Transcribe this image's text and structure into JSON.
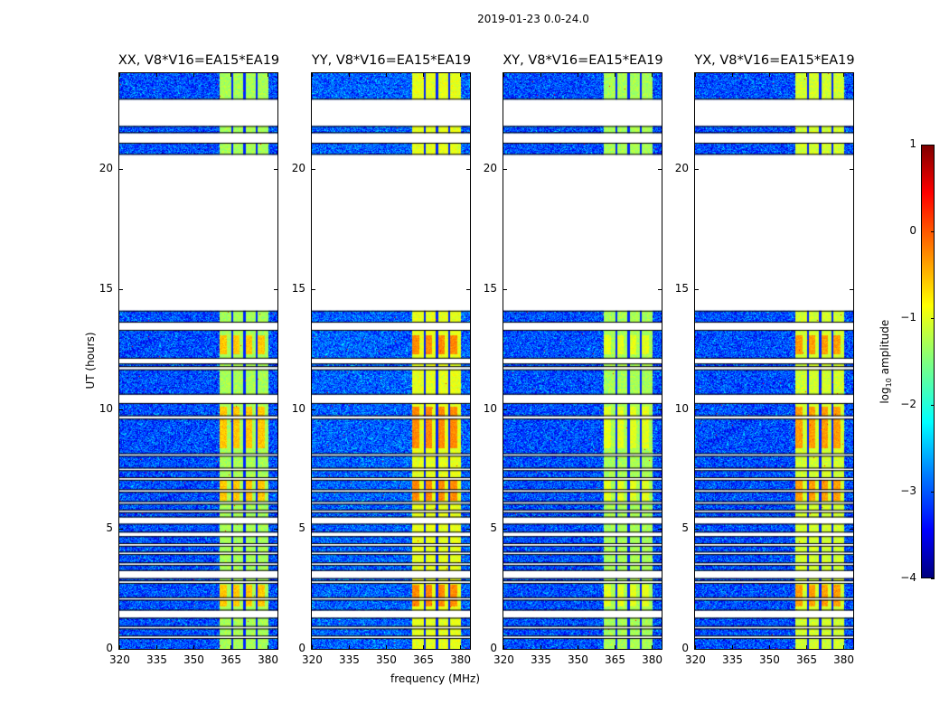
{
  "suptitle": "2019-01-23 0.0-24.0",
  "chart_data": {
    "type": "heatmap",
    "title": "2019-01-23 0.0-24.0",
    "xlabel": "frequency (MHz)",
    "ylabel": "UT (hours)",
    "xlim": [
      320,
      384
    ],
    "ylim": [
      0,
      24
    ],
    "xticks": [
      320,
      335,
      350,
      365,
      380
    ],
    "yticks": [
      0,
      5,
      10,
      15,
      20
    ],
    "panels": [
      {
        "title": "XX, V8*V16=EA15*EA19",
        "background_log_amp": -3.0,
        "band_log_amp": -1.3,
        "hot_log_amp": -0.6
      },
      {
        "title": "YY, V8*V16=EA15*EA19",
        "background_log_amp": -2.9,
        "band_log_amp": -1.0,
        "hot_log_amp": -0.3
      },
      {
        "title": "XY, V8*V16=EA15*EA19",
        "background_log_amp": -3.0,
        "band_log_amp": -1.3,
        "hot_log_amp": -1.0
      },
      {
        "title": "YX, V8*V16=EA15*EA19",
        "background_log_amp": -3.0,
        "band_log_amp": -1.1,
        "hot_log_amp": -0.4
      }
    ],
    "rfi_band_mhz": [
      360.5,
      380
    ],
    "band_channel_gaps_mhz": [
      365.5,
      370.5,
      375.5
    ],
    "hot_time_ranges_hours": [
      [
        12.3,
        13.1
      ],
      [
        8.4,
        10.1
      ],
      [
        6.2,
        7.1
      ],
      [
        1.8,
        2.7
      ]
    ],
    "flagged_time_ranges_hours": [
      [
        21.8,
        22.9
      ],
      [
        21.1,
        21.5
      ],
      [
        14.1,
        20.6
      ],
      [
        13.3,
        13.6
      ],
      [
        11.9,
        12.1
      ],
      [
        11.65,
        11.75
      ],
      [
        10.25,
        10.6
      ],
      [
        9.6,
        9.7
      ],
      [
        8.05,
        8.12
      ],
      [
        7.45,
        7.52
      ],
      [
        7.05,
        7.12
      ],
      [
        6.55,
        6.62
      ],
      [
        6.05,
        6.12
      ],
      [
        5.7,
        5.77
      ],
      [
        5.22,
        5.48
      ],
      [
        4.7,
        4.85
      ],
      [
        4.3,
        4.37
      ],
      [
        3.95,
        4.02
      ],
      [
        3.5,
        3.57
      ],
      [
        2.95,
        3.25
      ],
      [
        2.75,
        2.82
      ],
      [
        2.05,
        2.12
      ],
      [
        1.3,
        1.6
      ],
      [
        0.85,
        0.92
      ],
      [
        0.45,
        0.52
      ]
    ],
    "colorbar": {
      "label_prefix": "log",
      "label_sub": "10",
      "label_suffix": " amplitude",
      "range": [
        -4,
        1
      ],
      "ticks": [
        "1",
        "0",
        "−1",
        "−2",
        "−3",
        "−4"
      ],
      "colormap": "jet"
    }
  }
}
